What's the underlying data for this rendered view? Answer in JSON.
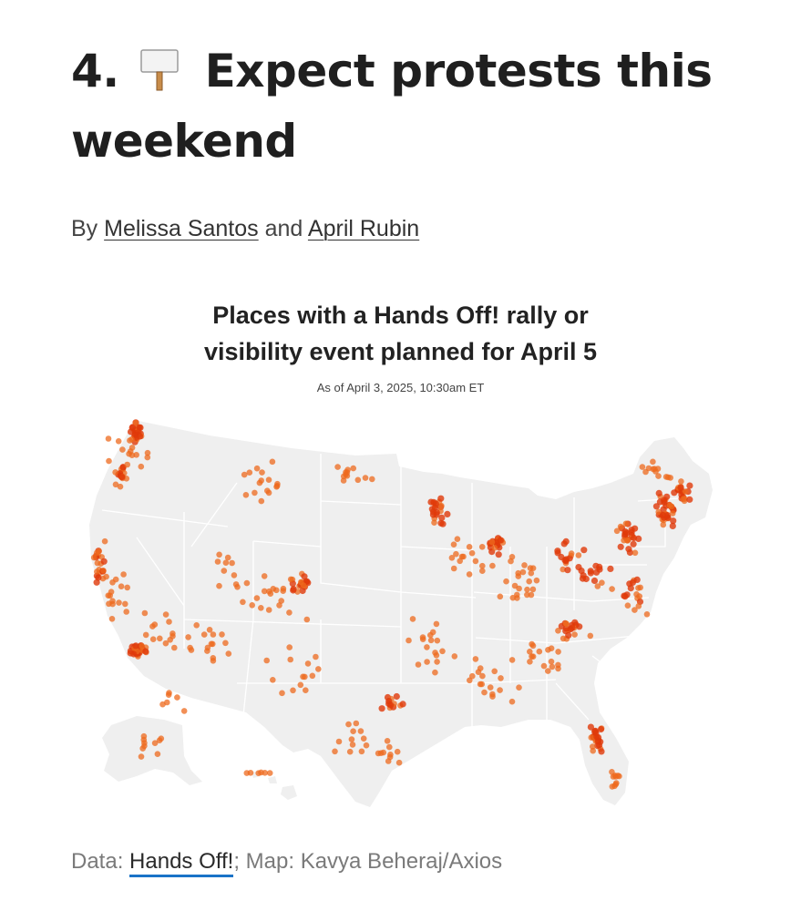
{
  "headline": {
    "number": "4.",
    "icon": "placard-icon",
    "text": "Expect protests this weekend"
  },
  "byline": {
    "prefix": "By",
    "author1": "Melissa Santos",
    "conjunction": "and",
    "author2": "April Rubin"
  },
  "map": {
    "title_line1": "Places with a Hands Off! rally or",
    "title_line2": "visibility event planned for April 5",
    "subtitle": "As of April 3, 2025, 10:30am ET",
    "land_color": "#efefef",
    "border_color": "#ffffff",
    "dot_color": "#ee6a1d",
    "dense_dot_color": "#e03a0a"
  },
  "credit": {
    "prefix": "Data:",
    "source_link": "Hands Off!",
    "rest": "; Map: Kavya Beheraj/Axios"
  }
}
